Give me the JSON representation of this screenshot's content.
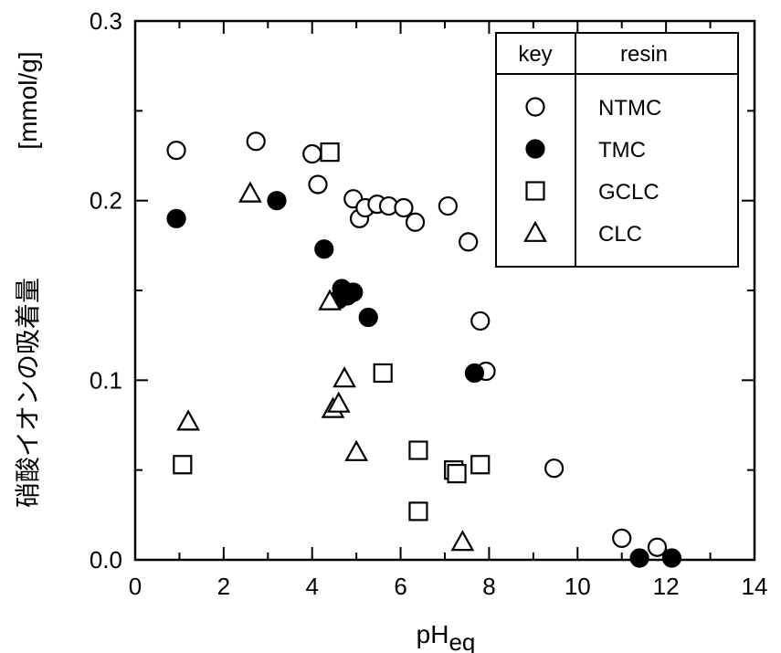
{
  "chart_data": {
    "type": "scatter",
    "xlabel": "pH",
    "xlabel_sub": "eq",
    "ylabel_main": "硝酸イオンの吸着量",
    "ylabel_unit": "[mmol/g]",
    "xlim": [
      0,
      14
    ],
    "ylim": [
      0,
      0.3
    ],
    "xticks": [
      "0",
      "2",
      "4",
      "6",
      "8",
      "10",
      "12",
      "14"
    ],
    "yticks": [
      "0.0",
      "0.1",
      "0.2",
      "0.3"
    ],
    "grid": false,
    "legend": {
      "placement": "top-right",
      "header_key": "key",
      "header_name": "resin"
    },
    "series": [
      {
        "name": "NTMC",
        "marker": "circle-open",
        "points": [
          [
            0.93,
            0.228
          ],
          [
            2.73,
            0.233
          ],
          [
            4.0,
            0.226
          ],
          [
            4.13,
            0.209
          ],
          [
            4.93,
            0.201
          ],
          [
            5.07,
            0.19
          ],
          [
            5.2,
            0.196
          ],
          [
            5.47,
            0.198
          ],
          [
            5.73,
            0.197
          ],
          [
            6.07,
            0.196
          ],
          [
            6.33,
            0.188
          ],
          [
            7.07,
            0.197
          ],
          [
            7.53,
            0.177
          ],
          [
            7.8,
            0.133
          ],
          [
            7.93,
            0.105
          ],
          [
            9.47,
            0.051
          ],
          [
            11.0,
            0.012
          ],
          [
            11.8,
            0.007
          ]
        ]
      },
      {
        "name": "TMC",
        "marker": "circle-filled",
        "points": [
          [
            0.93,
            0.19
          ],
          [
            3.2,
            0.2
          ],
          [
            4.27,
            0.173
          ],
          [
            4.67,
            0.151
          ],
          [
            4.6,
            0.145
          ],
          [
            4.8,
            0.147
          ],
          [
            4.93,
            0.149
          ],
          [
            5.27,
            0.135
          ],
          [
            7.67,
            0.104
          ],
          [
            11.4,
            0.001
          ],
          [
            12.13,
            0.001
          ]
        ]
      },
      {
        "name": "GCLC",
        "marker": "square-open",
        "points": [
          [
            1.07,
            0.053
          ],
          [
            4.4,
            0.227
          ],
          [
            5.6,
            0.104
          ],
          [
            6.4,
            0.061
          ],
          [
            6.4,
            0.027
          ],
          [
            7.2,
            0.05
          ],
          [
            7.27,
            0.048
          ],
          [
            7.8,
            0.053
          ]
        ]
      },
      {
        "name": "CLC",
        "marker": "triangle-open",
        "points": [
          [
            1.2,
            0.077
          ],
          [
            2.6,
            0.204
          ],
          [
            4.4,
            0.144
          ],
          [
            4.47,
            0.084
          ],
          [
            4.6,
            0.087
          ],
          [
            4.73,
            0.101
          ],
          [
            5.0,
            0.06
          ],
          [
            7.4,
            0.01
          ]
        ]
      }
    ]
  }
}
